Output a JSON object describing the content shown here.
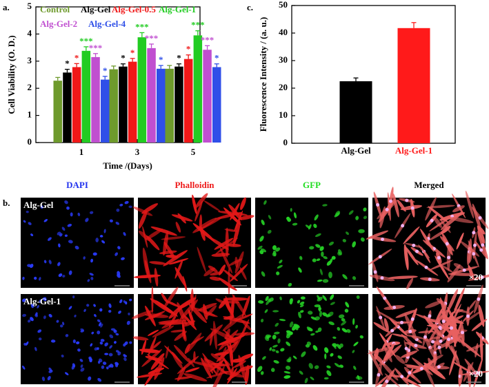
{
  "panel_labels": [
    "a.",
    "b.",
    "c."
  ],
  "chart_data": [
    {
      "type": "grouped-bar",
      "ylabel": "Cell Viability (O. D.)",
      "xlabel": "Time /(Days)",
      "categories": [
        "1",
        "3",
        "5"
      ],
      "series": [
        {
          "name": "Control",
          "color": "#6e9a2c",
          "values": [
            2.28,
            2.7,
            2.72
          ],
          "errors": [
            0.12,
            0.12,
            0.12
          ]
        },
        {
          "name": "Alg-Gel",
          "color": "#000000",
          "values": [
            2.58,
            2.8,
            2.8
          ],
          "errors": [
            0.12,
            0.1,
            0.1
          ],
          "significance": [
            "*",
            "*",
            "*"
          ]
        },
        {
          "name": "Alg-Gel-0.5",
          "color": "#f01818",
          "values": [
            2.78,
            2.98,
            3.08
          ],
          "errors": [
            0.13,
            0.12,
            0.15
          ],
          "significance": [
            "*",
            "*",
            "*"
          ]
        },
        {
          "name": "Alg-Gel-1",
          "color": "#22cc22",
          "values": [
            3.38,
            3.88,
            3.95
          ],
          "errors": [
            0.15,
            0.17,
            0.17
          ],
          "significance": [
            "***",
            "***",
            "***"
          ]
        },
        {
          "name": "Alg-Gel-2",
          "color": "#c04fd0",
          "values": [
            3.15,
            3.48,
            3.42
          ],
          "errors": [
            0.13,
            0.15,
            0.15
          ],
          "significance": [
            "***",
            "***",
            "***"
          ]
        },
        {
          "name": "Alg-Gel-4",
          "color": "#2f4fe8",
          "values": [
            2.32,
            2.72,
            2.78
          ],
          "errors": [
            0.12,
            0.12,
            0.12
          ],
          "significance": [
            "*",
            "*",
            "*"
          ]
        }
      ],
      "ylim": [
        0,
        5
      ],
      "yticks": [
        0,
        1,
        2,
        3,
        4,
        5
      ]
    },
    {
      "type": "bar",
      "ylabel": "Fluorescence Intensity / (a. u.)",
      "categories": [
        "Alg-Gel",
        "Alg-Gel-1"
      ],
      "colors": [
        "#000000",
        "#ff1a1a"
      ],
      "values": [
        22.5,
        41.8
      ],
      "errors": [
        1.2,
        2.0
      ],
      "ylim": [
        0,
        50
      ],
      "yticks": [
        0,
        10,
        20,
        30,
        40,
        50
      ]
    }
  ],
  "micrographs": {
    "columns": [
      {
        "label": "DAPI",
        "color": "#2233ee"
      },
      {
        "label": "Phalloidin",
        "color": "#ee1c1c"
      },
      {
        "label": "GFP",
        "color": "#22dd22"
      },
      {
        "label": "Merged",
        "color": "#000000"
      }
    ],
    "rows": [
      "Alg-Gel",
      "Alg-Gel-1"
    ],
    "magnification": "×20"
  }
}
